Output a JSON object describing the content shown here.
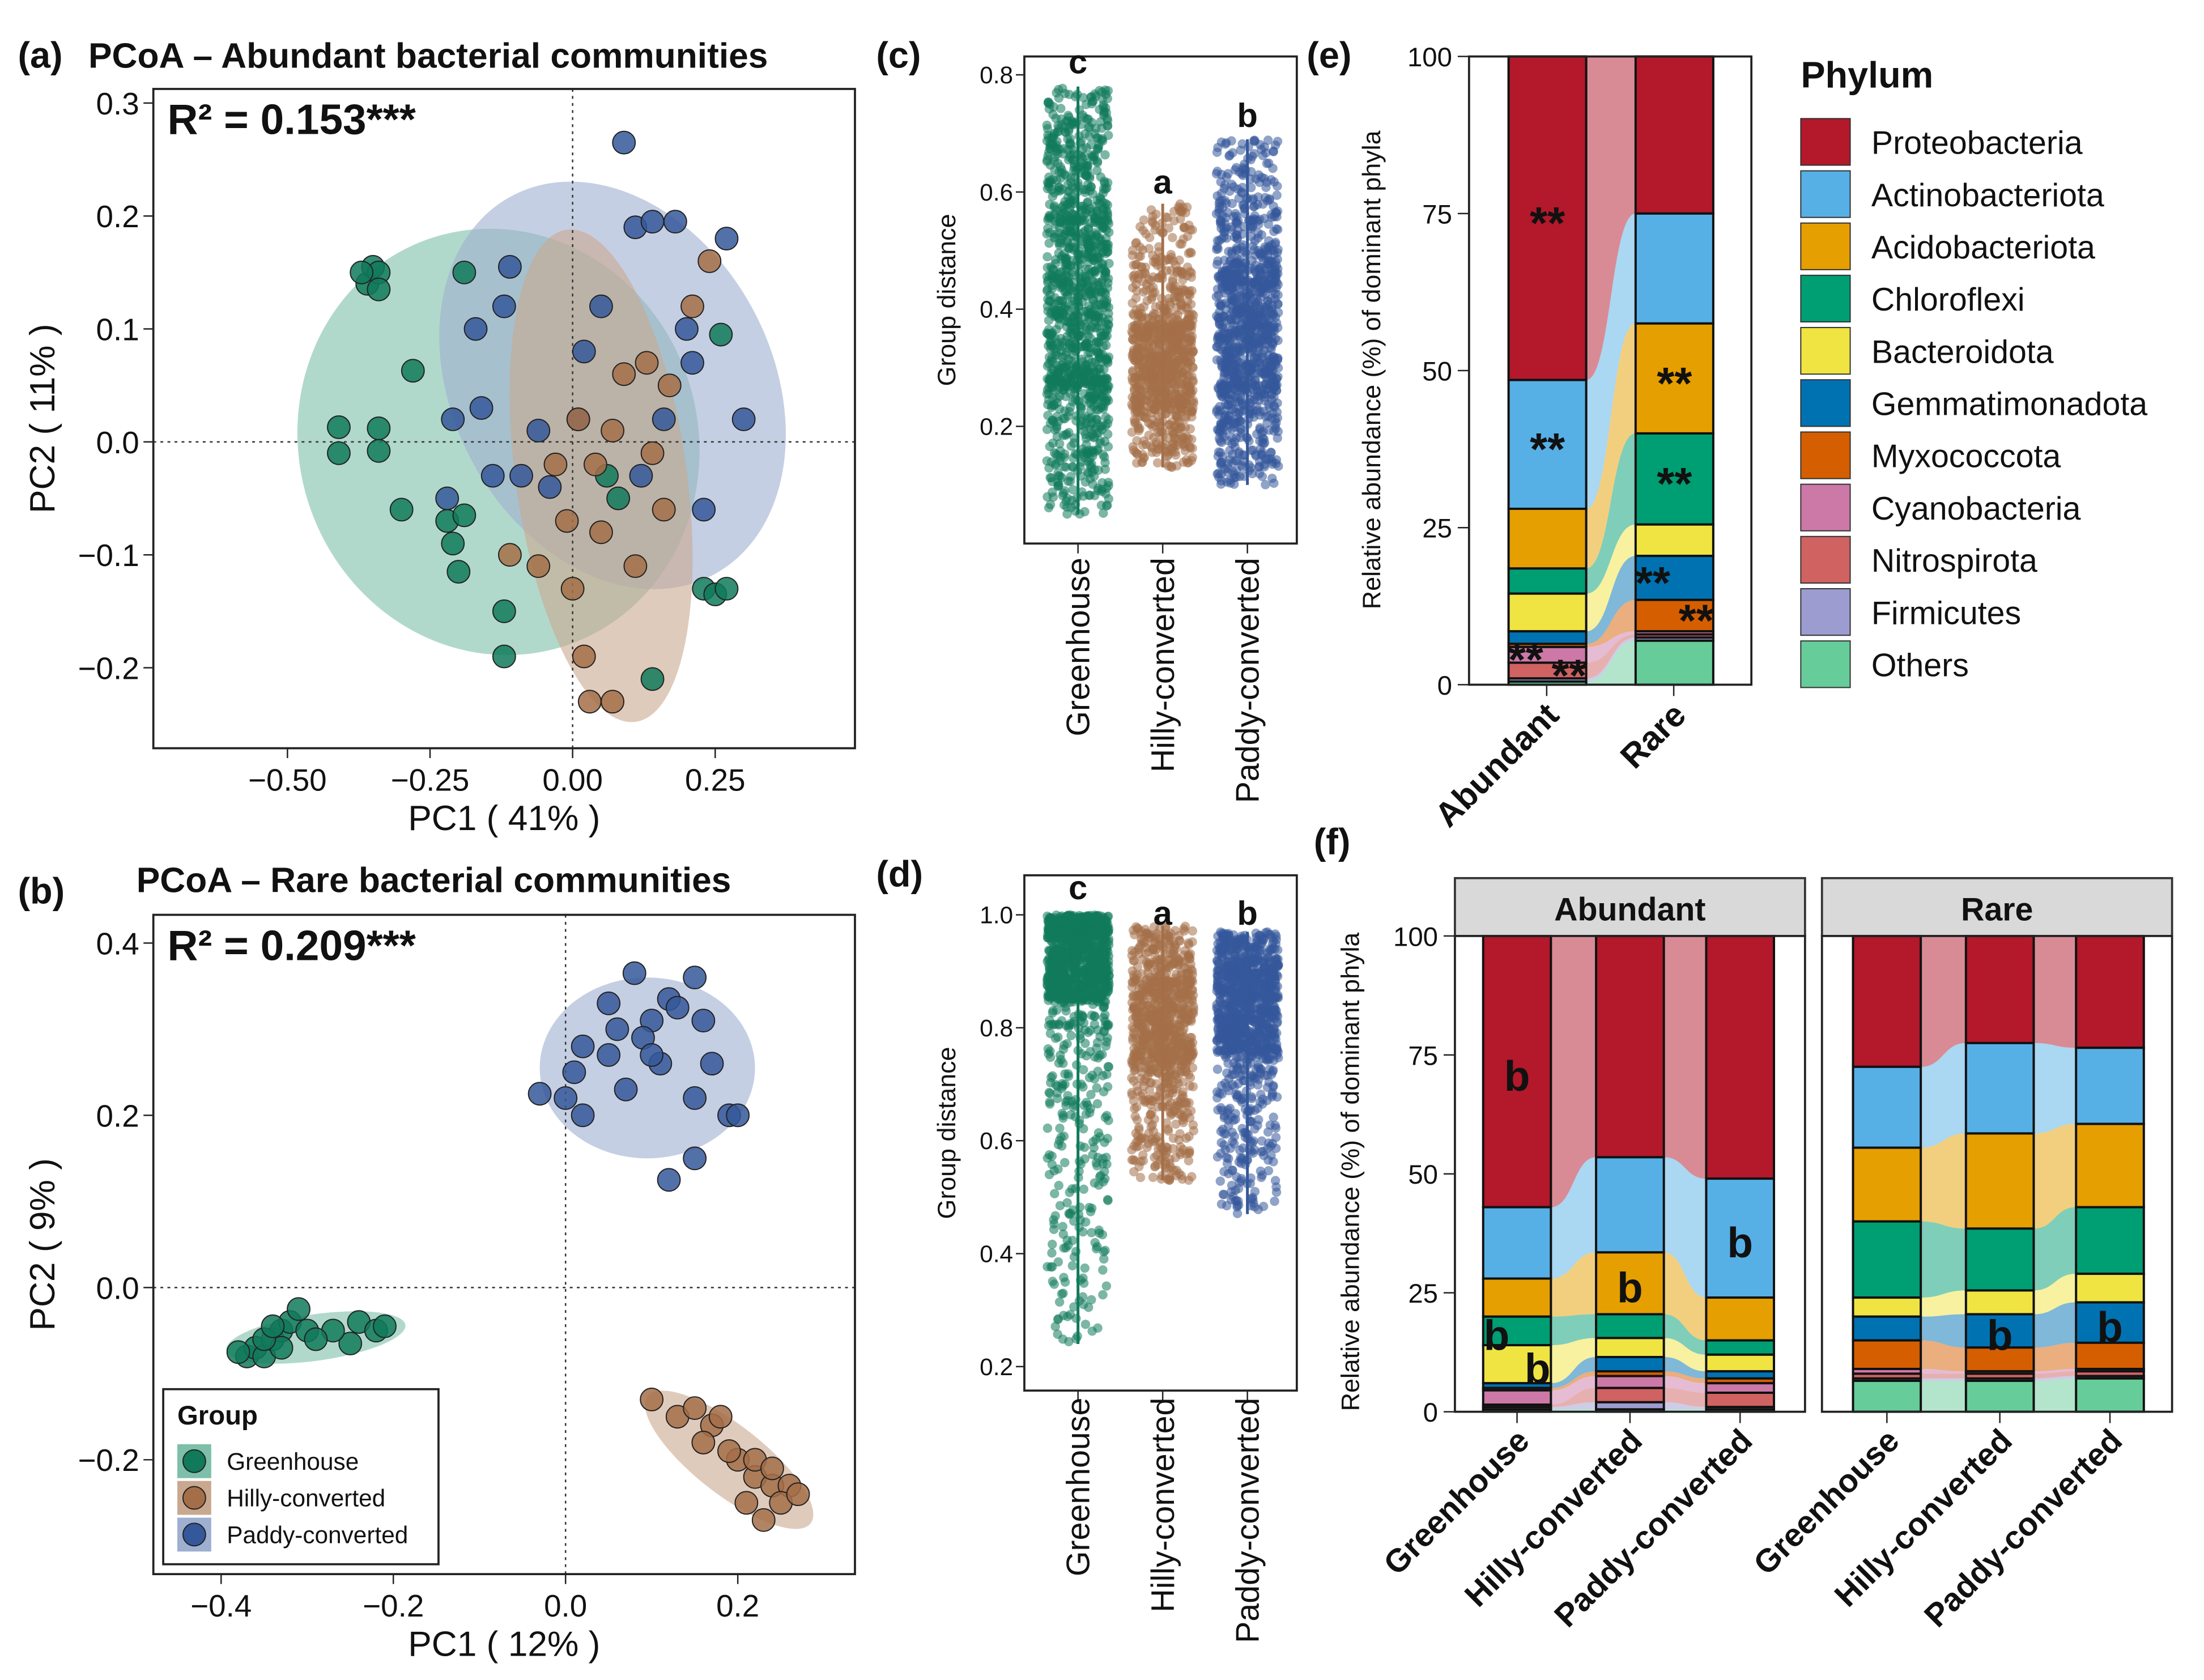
{
  "groups": [
    "Greenhouse",
    "Hilly-converted",
    "Paddy-converted"
  ],
  "group_colors": {
    "Greenhouse": "#117A5B",
    "Hilly-converted": "#A46F48",
    "Paddy-converted": "#35589A"
  },
  "phyla": [
    "Proteobacteria",
    "Actinobacteriota",
    "Acidobacteriota",
    "Chloroflexi",
    "Bacteroidota",
    "Gemmatimonadota",
    "Myxococcota",
    "Cyanobacteria",
    "Nitrospirota",
    "Firmicutes",
    "Others"
  ],
  "phyla_colors": [
    "#B3182B",
    "#56B0E6",
    "#E69F00",
    "#009E73",
    "#F0E442",
    "#0072B2",
    "#D55E00",
    "#CC79A7",
    "#D06262",
    "#9C9CD0",
    "#66CC99"
  ],
  "legend_phylum_title": "Phylum",
  "chart_data": [
    {
      "id": "a",
      "type": "scatter",
      "panel_label": "(a)",
      "title": "PCoA – Abundant bacterial communities",
      "annotation": "R² = 0.153***",
      "xlabel": "PC1 ( 41% )",
      "ylabel": "PC2 ( 11% )",
      "xticks": [
        "−0.50",
        "−0.25",
        "0.00",
        "0.25"
      ],
      "xtick_values": [
        -0.5,
        -0.25,
        0,
        0.25
      ],
      "yticks": [
        "0.3",
        "0.2",
        "0.1",
        "0.0",
        "−0.1",
        "−0.2"
      ],
      "ytick_values": [
        0.3,
        0.2,
        0.1,
        0,
        -0.1,
        -0.2
      ],
      "xlim": [
        -0.73,
        0.5
      ],
      "ylim": [
        -0.27,
        0.31
      ],
      "ellipses": {
        "Greenhouse": {
          "cx": -0.13,
          "cy": 0.0,
          "rx": 0.35,
          "ry": 0.19,
          "angle": -18
        },
        "Paddy-converted": {
          "cx": 0.07,
          "cy": 0.05,
          "rx": 0.28,
          "ry": 0.19,
          "angle": -28
        },
        "Hilly-converted": {
          "cx": 0.05,
          "cy": -0.03,
          "rx": 0.15,
          "ry": 0.22,
          "angle": -8
        }
      },
      "points": {
        "Greenhouse": [
          [
            -0.36,
            0.14
          ],
          [
            -0.35,
            0.155
          ],
          [
            -0.34,
            0.15
          ],
          [
            -0.34,
            0.135
          ],
          [
            -0.37,
            0.15
          ],
          [
            -0.41,
            0.013
          ],
          [
            -0.41,
            -0.01
          ],
          [
            -0.34,
            0.012
          ],
          [
            -0.34,
            -0.008
          ],
          [
            -0.28,
            0.063
          ],
          [
            -0.3,
            -0.06
          ],
          [
            -0.22,
            -0.07
          ],
          [
            -0.21,
            -0.09
          ],
          [
            -0.2,
            -0.115
          ],
          [
            -0.19,
            -0.065
          ],
          [
            -0.19,
            0.15
          ],
          [
            -0.12,
            -0.19
          ],
          [
            0.14,
            -0.21
          ],
          [
            0.23,
            -0.13
          ],
          [
            0.25,
            -0.135
          ],
          [
            0.27,
            -0.13
          ],
          [
            0.08,
            -0.05
          ],
          [
            0.26,
            0.095
          ],
          [
            0.06,
            -0.03
          ],
          [
            -0.12,
            -0.15
          ]
        ],
        "Paddy-converted": [
          [
            0.09,
            0.265
          ],
          [
            0.11,
            0.19
          ],
          [
            0.14,
            0.195
          ],
          [
            0.18,
            0.195
          ],
          [
            0.27,
            0.18
          ],
          [
            -0.11,
            0.155
          ],
          [
            -0.12,
            0.12
          ],
          [
            -0.17,
            0.1
          ],
          [
            -0.16,
            0.03
          ],
          [
            -0.21,
            0.02
          ],
          [
            -0.09,
            -0.03
          ],
          [
            -0.22,
            -0.05
          ],
          [
            0.3,
            0.02
          ],
          [
            0.23,
            -0.06
          ],
          [
            0.21,
            0.07
          ],
          [
            -0.04,
            -0.04
          ],
          [
            0.01,
            0.02
          ],
          [
            0.16,
            0.02
          ],
          [
            0.05,
            0.12
          ],
          [
            0.2,
            0.1
          ],
          [
            -0.06,
            0.01
          ],
          [
            0.12,
            -0.03
          ],
          [
            -0.14,
            -0.03
          ],
          [
            0.02,
            0.08
          ]
        ],
        "Hilly-converted": [
          [
            0.24,
            0.16
          ],
          [
            0.21,
            0.12
          ],
          [
            0.17,
            0.05
          ],
          [
            0.01,
            0.02
          ],
          [
            0.02,
            -0.19
          ],
          [
            0.03,
            -0.23
          ],
          [
            0.07,
            -0.23
          ],
          [
            0.09,
            0.06
          ],
          [
            0.14,
            -0.01
          ],
          [
            0.04,
            -0.02
          ],
          [
            -0.06,
            -0.11
          ],
          [
            -0.01,
            -0.07
          ],
          [
            0.11,
            -0.11
          ],
          [
            -0.11,
            -0.1
          ],
          [
            0.07,
            0.01
          ],
          [
            0.13,
            0.07
          ],
          [
            0.0,
            -0.13
          ],
          [
            -0.03,
            -0.02
          ],
          [
            0.16,
            -0.06
          ],
          [
            0.05,
            -0.08
          ]
        ]
      }
    },
    {
      "id": "b",
      "type": "scatter",
      "panel_label": "(b)",
      "title": "PCoA – Rare bacterial communities",
      "annotation": "R² = 0.209***",
      "xlabel": "PC1 ( 12% )",
      "ylabel": "PC2 ( 9% )",
      "xticks": [
        "−0.4",
        "−0.2",
        "0.0",
        "0.2"
      ],
      "xtick_values": [
        -0.4,
        -0.2,
        0,
        0.2
      ],
      "yticks": [
        "0.4",
        "0.2",
        "0.0",
        "−0.2"
      ],
      "ytick_values": [
        0.4,
        0.2,
        0,
        -0.2
      ],
      "legend_title": "Group",
      "legend_position": "bottom-left",
      "ellipses": {
        "Greenhouse": {
          "cx": -0.29,
          "cy": -0.058,
          "rx": 0.105,
          "ry": 0.027,
          "angle": -8
        },
        "Paddy-converted": {
          "cx": 0.095,
          "cy": 0.255,
          "rx": 0.125,
          "ry": 0.105,
          "angle": 0
        },
        "Hilly-converted": {
          "cx": 0.19,
          "cy": -0.2,
          "rx": 0.12,
          "ry": 0.04,
          "angle": 38
        }
      },
      "points": {
        "Greenhouse": [
          [
            -0.37,
            -0.08
          ],
          [
            -0.36,
            -0.07
          ],
          [
            -0.35,
            -0.08
          ],
          [
            -0.34,
            -0.06
          ],
          [
            -0.33,
            -0.05
          ],
          [
            -0.32,
            -0.04
          ],
          [
            -0.31,
            -0.025
          ],
          [
            -0.33,
            -0.07
          ],
          [
            -0.3,
            -0.05
          ],
          [
            -0.25,
            -0.065
          ],
          [
            -0.24,
            -0.04
          ],
          [
            -0.22,
            -0.05
          ],
          [
            -0.21,
            -0.045
          ],
          [
            -0.27,
            -0.05
          ],
          [
            -0.35,
            -0.06
          ],
          [
            -0.38,
            -0.075
          ],
          [
            -0.29,
            -0.06
          ],
          [
            -0.34,
            -0.045
          ]
        ],
        "Paddy-converted": [
          [
            0.08,
            0.365
          ],
          [
            0.12,
            0.335
          ],
          [
            0.15,
            0.36
          ],
          [
            0.1,
            0.31
          ],
          [
            0.06,
            0.3
          ],
          [
            0.02,
            0.28
          ],
          [
            -0.03,
            0.225
          ],
          [
            0.0,
            0.22
          ],
          [
            0.02,
            0.2
          ],
          [
            0.05,
            0.27
          ],
          [
            0.09,
            0.29
          ],
          [
            0.11,
            0.26
          ],
          [
            0.13,
            0.325
          ],
          [
            0.16,
            0.31
          ],
          [
            0.19,
            0.2
          ],
          [
            0.2,
            0.2
          ],
          [
            0.15,
            0.15
          ],
          [
            0.12,
            0.125
          ],
          [
            0.15,
            0.22
          ],
          [
            0.07,
            0.23
          ],
          [
            0.1,
            0.27
          ],
          [
            0.01,
            0.25
          ],
          [
            0.17,
            0.26
          ],
          [
            0.05,
            0.33
          ]
        ],
        "Hilly-converted": [
          [
            0.1,
            -0.13
          ],
          [
            0.13,
            -0.15
          ],
          [
            0.15,
            -0.14
          ],
          [
            0.17,
            -0.16
          ],
          [
            0.2,
            -0.2
          ],
          [
            0.22,
            -0.22
          ],
          [
            0.24,
            -0.23
          ],
          [
            0.26,
            -0.23
          ],
          [
            0.25,
            -0.25
          ],
          [
            0.23,
            -0.27
          ],
          [
            0.21,
            -0.25
          ],
          [
            0.19,
            -0.19
          ],
          [
            0.16,
            -0.18
          ],
          [
            0.22,
            -0.2
          ],
          [
            0.24,
            -0.21
          ],
          [
            0.18,
            -0.15
          ],
          [
            0.27,
            -0.24
          ]
        ]
      }
    },
    {
      "id": "c",
      "type": "scatter",
      "subtype": "jitter-box",
      "panel_label": "(c)",
      "ylabel": "Group distance",
      "yticks": [
        "0.2",
        "0.4",
        "0.6",
        "0.8"
      ],
      "ytick_values": [
        0.2,
        0.4,
        0.6,
        0.8
      ],
      "categories": [
        "Greenhouse",
        "Hilly-converted",
        "Paddy-converted"
      ],
      "letters": [
        "c",
        "a",
        "b"
      ],
      "distributions": [
        {
          "min": 0.05,
          "q1": 0.28,
          "median": 0.4,
          "q3": 0.55,
          "max": 0.78,
          "n": 1200
        },
        {
          "min": 0.13,
          "q1": 0.24,
          "median": 0.3,
          "q3": 0.37,
          "max": 0.58,
          "n": 900
        },
        {
          "min": 0.1,
          "q1": 0.27,
          "median": 0.36,
          "q3": 0.46,
          "max": 0.69,
          "n": 1100
        }
      ]
    },
    {
      "id": "d",
      "type": "scatter",
      "subtype": "jitter-box",
      "panel_label": "(d)",
      "ylabel": "Group distance",
      "yticks": [
        "0.2",
        "0.4",
        "0.6",
        "0.8",
        "1.0"
      ],
      "ytick_values": [
        0.2,
        0.4,
        0.6,
        0.8,
        1.0
      ],
      "categories": [
        "Greenhouse",
        "Hilly-converted",
        "Paddy-converted"
      ],
      "letters": [
        "c",
        "a",
        "b"
      ],
      "distributions": [
        {
          "min": 0.24,
          "q1": 0.85,
          "median": 0.92,
          "q3": 0.97,
          "max": 1.0,
          "n": 1200
        },
        {
          "min": 0.53,
          "q1": 0.74,
          "median": 0.81,
          "q3": 0.88,
          "max": 0.98,
          "n": 900
        },
        {
          "min": 0.47,
          "q1": 0.76,
          "median": 0.83,
          "q3": 0.89,
          "max": 0.97,
          "n": 1100
        }
      ]
    },
    {
      "id": "e",
      "type": "bar",
      "stacked": true,
      "panel_label": "(e)",
      "ylabel": "Relative abundance (%) of dominant phyla",
      "yticks": [
        "0",
        "25",
        "50",
        "75",
        "100"
      ],
      "ytick_values": [
        0,
        25,
        50,
        75,
        100
      ],
      "ylim": [
        0,
        100
      ],
      "categories": [
        "Abundant",
        "Rare"
      ],
      "values": [
        [
          51.5,
          20.5,
          9.5,
          4,
          6,
          2,
          0.5,
          2.5,
          2.5,
          0.5,
          0.5
        ],
        [
          25,
          17.5,
          17.5,
          14.5,
          5,
          7,
          5,
          0.5,
          0.5,
          0.5,
          7
        ]
      ],
      "annotations": [
        {
          "bar": 0,
          "phylum": 0,
          "label": "**"
        },
        {
          "bar": 0,
          "phylum": 1,
          "label": "**"
        },
        {
          "bar": 0,
          "phylum": 7,
          "label": "**"
        },
        {
          "bar": 0,
          "phylum": 8,
          "label": "**"
        },
        {
          "bar": 1,
          "phylum": 2,
          "label": "**"
        },
        {
          "bar": 1,
          "phylum": 3,
          "label": "**"
        },
        {
          "bar": 1,
          "phylum": 5,
          "label": "**"
        },
        {
          "bar": 1,
          "phylum": 6,
          "label": "**"
        }
      ]
    },
    {
      "id": "f",
      "type": "bar",
      "stacked": true,
      "panel_label": "(f)",
      "ylabel": "Relative abundance (%) of dominant phyla",
      "yticks": [
        "0",
        "25",
        "50",
        "75",
        "100"
      ],
      "ytick_values": [
        0,
        25,
        50,
        75,
        100
      ],
      "ylim": [
        0,
        100
      ],
      "facets": [
        {
          "label": "Abundant",
          "categories": [
            "Greenhouse",
            "Hilly-converted",
            "Paddy-converted"
          ],
          "values": [
            [
              57,
              15,
              8,
              6,
              8,
              1,
              0.5,
              3,
              0.5,
              0.5,
              0.5
            ],
            [
              46.5,
              20,
              13,
              5,
              4,
              3,
              1,
              2.5,
              3,
              1.5,
              0.5
            ],
            [
              51,
              25,
              9,
              3,
              3.5,
              1.5,
              1,
              2,
              3,
              0.5,
              0.5
            ]
          ],
          "annotations": [
            {
              "bar": 0,
              "phylum": 0,
              "label": "b"
            },
            {
              "bar": 0,
              "phylum": 3,
              "label": "b"
            },
            {
              "bar": 0,
              "phylum": 4,
              "label": "b"
            },
            {
              "bar": 1,
              "phylum": 2,
              "label": "b"
            },
            {
              "bar": 2,
              "phylum": 1,
              "label": "b"
            }
          ]
        },
        {
          "label": "Rare",
          "categories": [
            "Greenhouse",
            "Hilly-converted",
            "Paddy-converted"
          ],
          "values": [
            [
              27.5,
              17,
              15.5,
              16,
              4,
              5,
              6,
              1,
              1,
              0.5,
              6.5
            ],
            [
              22.5,
              19,
              20,
              13,
              5,
              7,
              5,
              0.5,
              1,
              0.5,
              6.5
            ],
            [
              23.5,
              16,
              17.5,
              14,
              6,
              8.5,
              5.5,
              0.5,
              1,
              0.5,
              7
            ]
          ],
          "annotations": [
            {
              "bar": 1,
              "phylum": 5,
              "label": "b"
            },
            {
              "bar": 2,
              "phylum": 5,
              "label": "b"
            }
          ]
        }
      ]
    }
  ]
}
